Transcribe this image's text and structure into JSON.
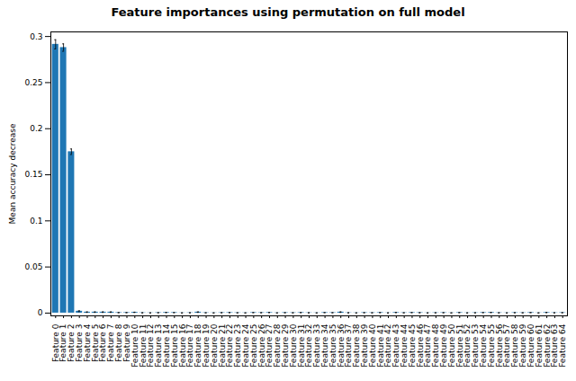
{
  "chart_data": {
    "type": "bar",
    "title": "Feature importances using permutation on full model",
    "ylabel": "Mean accuracy decrease",
    "categories": [
      "Feature 0",
      "Feature 1",
      "Feature 2",
      "Feature 3",
      "Feature 4",
      "Feature 5",
      "Feature 6",
      "Feature 7",
      "Feature 8",
      "Feature 9",
      "Feature 10",
      "Feature 11",
      "Feature 12",
      "Feature 13",
      "Feature 14",
      "Feature 15",
      "Feature 16",
      "Feature 17",
      "Feature 18",
      "Feature 19",
      "Feature 20",
      "Feature 21",
      "Feature 22",
      "Feature 23",
      "Feature 24",
      "Feature 25",
      "Feature 26",
      "Feature 27",
      "Feature 28",
      "Feature 29",
      "Feature 30",
      "Feature 31",
      "Feature 32",
      "Feature 33",
      "Feature 34",
      "Feature 35",
      "Feature 36",
      "Feature 37",
      "Feature 38",
      "Feature 39",
      "Feature 40",
      "Feature 41",
      "Feature 42",
      "Feature 43",
      "Feature 44",
      "Feature 45",
      "Feature 46",
      "Feature 47",
      "Feature 48",
      "Feature 49",
      "Feature 50",
      "Feature 51",
      "Feature 52",
      "Feature 53",
      "Feature 54",
      "Feature 55",
      "Feature 56",
      "Feature 57",
      "Feature 58",
      "Feature 59",
      "Feature 60",
      "Feature 61",
      "Feature 62",
      "Feature 63",
      "Feature 64"
    ],
    "values": [
      0.2915,
      0.288,
      0.175,
      0.002,
      0.001,
      0.001,
      0.001,
      0.001,
      0.0005,
      0.0005,
      0.0008,
      0.0003,
      0.0002,
      0.0004,
      0.0006,
      0.0005,
      0.0002,
      0.0003,
      0.001,
      0.0003,
      0.0002,
      0.0004,
      0.0005,
      0.0003,
      0.0002,
      0.0005,
      0.0004,
      0.0006,
      0.0002,
      0.0004,
      0.0003,
      0.0005,
      0.0003,
      0.0002,
      0.0005,
      0.0004,
      0.001,
      0.0003,
      0.0002,
      0.0004,
      0.0003,
      0.0005,
      0.0002,
      0.0006,
      0.0003,
      0.0005,
      0.0004,
      0.0002,
      0.0003,
      0.0004,
      0.0002,
      0.0005,
      0.0002,
      0.0003,
      0.0005,
      0.0006,
      0.0003,
      0.0002,
      0.0004,
      0.0003,
      0.0005,
      0.0002,
      0.0006,
      0.0003,
      0.0004
    ],
    "errors": [
      0.005,
      0.004,
      0.003,
      0.0005,
      0.0003,
      0.0003,
      0.0003,
      0.0003,
      0.0002,
      0.0002,
      0.0002,
      0.0001,
      0.0001,
      0.0001,
      0.0002,
      0.0001,
      0.0001,
      0.0001,
      0.0003,
      0.0001,
      0.0001,
      0.0001,
      0.0001,
      0.0001,
      0.0001,
      0.0001,
      0.0001,
      0.0001,
      0.0001,
      0.0001,
      0.0001,
      0.0001,
      0.0001,
      0.0001,
      0.0001,
      0.0001,
      0.0003,
      0.0001,
      0.0001,
      0.0001,
      0.0001,
      0.0001,
      0.0001,
      0.0002,
      0.0001,
      0.0001,
      0.0001,
      0.0001,
      0.0001,
      0.0001,
      0.0001,
      0.0001,
      0.0001,
      0.0001,
      0.0001,
      0.0002,
      0.0001,
      0.0001,
      0.0001,
      0.0001,
      0.0001,
      0.0001,
      0.0002,
      0.0001,
      0.0001
    ],
    "color": "#1f77b4",
    "ylim": [
      -0.003,
      0.305
    ],
    "yticks": [
      0,
      0.05,
      0.1,
      0.15,
      0.2,
      0.25,
      0.3
    ],
    "grid": false
  }
}
